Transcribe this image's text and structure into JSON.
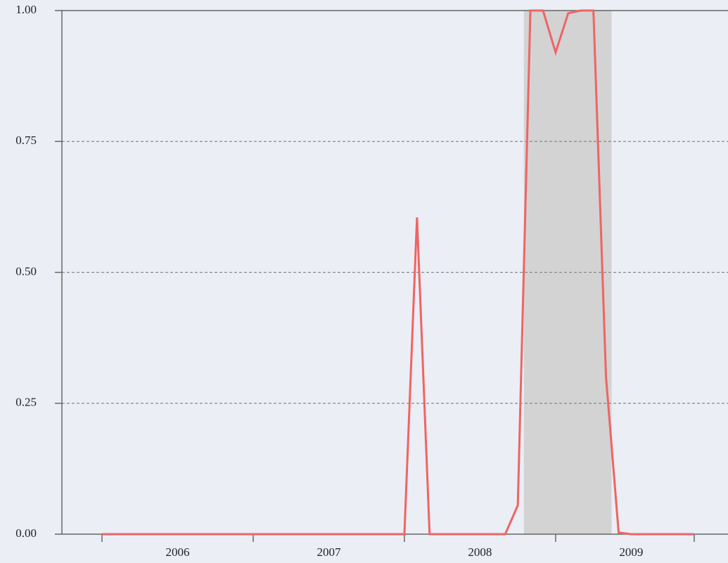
{
  "chart_data": {
    "type": "line",
    "x": [
      2006,
      2006.0833,
      2006.1667,
      2006.25,
      2006.3333,
      2006.4167,
      2006.5,
      2006.5833,
      2006.6667,
      2006.75,
      2006.8333,
      2006.9167,
      2007,
      2007.0833,
      2007.1667,
      2007.25,
      2007.3333,
      2007.4167,
      2007.5,
      2007.5833,
      2007.6667,
      2007.75,
      2007.8333,
      2007.9167,
      2008,
      2008.0833,
      2008.1667,
      2008.25,
      2008.3333,
      2008.4167,
      2008.5,
      2008.5833,
      2008.6667,
      2008.75,
      2008.8333,
      2008.9167,
      2009,
      2009.0833,
      2009.1667,
      2009.25,
      2009.3333,
      2009.4167,
      2009.5,
      2009.5833,
      2009.6667,
      2009.75,
      2009.8333,
      2009.9167
    ],
    "values": [
      0,
      0,
      0,
      0,
      0,
      0,
      0,
      0,
      0,
      0,
      0,
      0,
      0,
      0,
      0,
      0,
      0,
      0,
      0,
      0,
      0,
      0,
      0,
      0,
      0,
      0.605,
      0,
      0,
      0,
      0,
      0,
      0,
      0,
      0.055,
      1.0,
      1.0,
      0.92,
      0.995,
      1.0,
      1.0,
      0.3,
      0.003,
      0,
      0,
      0,
      0,
      0,
      0
    ],
    "color": "#ef6464",
    "shaded_regions": [
      [
        2008.79,
        2009.37
      ]
    ],
    "shade_color": "#d3d3d3",
    "xlim": [
      2005.735,
      2010.14
    ],
    "xticks": [
      2006,
      2007,
      2008,
      2009
    ],
    "ylim": [
      0,
      1
    ],
    "yticks": [
      {
        "value": 0,
        "label": "0.00"
      },
      {
        "value": 0.25,
        "label": "0.25"
      },
      {
        "value": 0.5,
        "label": "0.50"
      },
      {
        "value": 0.75,
        "label": "0.75"
      },
      {
        "value": 1,
        "label": "1.00"
      }
    ],
    "grid": true
  }
}
